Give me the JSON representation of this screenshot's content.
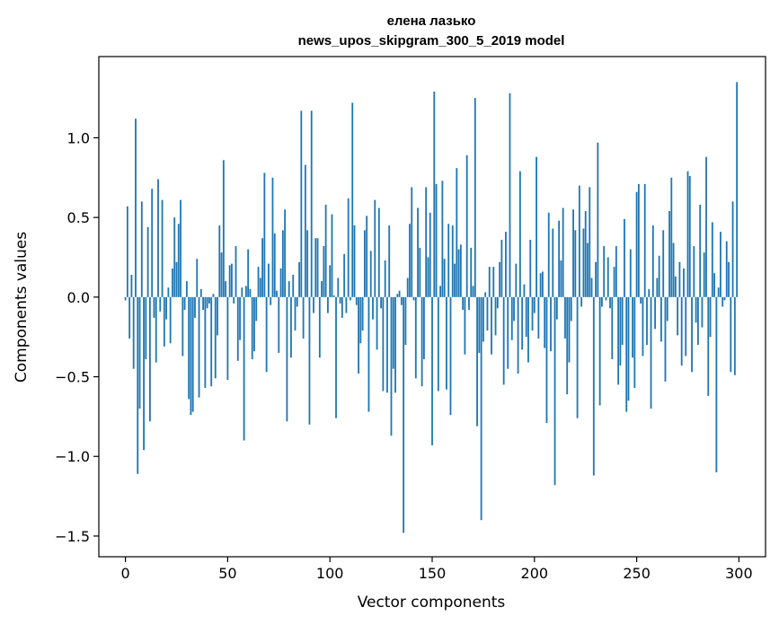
{
  "chart_data": {
    "type": "bar",
    "title": "елена лазько",
    "subtitle": "news_upos_skipgram_300_5_2019 model",
    "xlabel": "Vector components",
    "ylabel": "Components values",
    "xlim": [
      -13,
      313
    ],
    "ylim": [
      -1.63,
      1.51
    ],
    "xticks": [
      0,
      50,
      100,
      150,
      200,
      250,
      300
    ],
    "xtick_labels": [
      "0",
      "50",
      "100",
      "150",
      "200",
      "250",
      "300"
    ],
    "yticks": [
      -1.5,
      -1.0,
      -0.5,
      0.0,
      0.5,
      1.0
    ],
    "ytick_labels": [
      "−1.5",
      "−1.0",
      "−0.5",
      "0.0",
      "0.5",
      "1.0"
    ],
    "grid": false,
    "legend": "none",
    "bar_color": "#1f77b4",
    "x": "0..299",
    "values": [
      -0.02,
      0.57,
      -0.26,
      0.14,
      -0.45,
      1.12,
      -1.11,
      -0.7,
      0.6,
      -0.96,
      -0.39,
      0.44,
      -0.78,
      0.68,
      -0.13,
      -0.41,
      0.74,
      -0.09,
      0.61,
      -0.31,
      -0.14,
      0.06,
      -0.29,
      0.18,
      0.5,
      0.22,
      0.46,
      0.61,
      -0.37,
      -0.08,
      0.1,
      -0.64,
      -0.74,
      -0.72,
      -0.13,
      0.24,
      -0.63,
      0.05,
      -0.08,
      -0.57,
      -0.07,
      -0.04,
      -0.56,
      0.02,
      -0.51,
      -0.24,
      0.45,
      0.28,
      0.86,
      0.1,
      -0.52,
      0.2,
      0.21,
      -0.04,
      0.32,
      -0.4,
      -0.27,
      0.06,
      -0.9,
      0.07,
      0.3,
      0.05,
      -0.39,
      -0.34,
      -0.15,
      0.19,
      0.12,
      0.37,
      0.78,
      -0.47,
      0.21,
      -0.05,
      0.75,
      0.4,
      0.04,
      -0.35,
      0.18,
      0.42,
      0.55,
      -0.78,
      0.1,
      -0.38,
      0.14,
      -0.21,
      -0.06,
      0.22,
      1.17,
      -0.26,
      0.83,
      0.42,
      -0.8,
      1.17,
      -0.1,
      0.37,
      0.37,
      -0.38,
      0.1,
      0.32,
      0.58,
      -0.1,
      0.2,
      0.52,
      0.01,
      -0.76,
      0.12,
      -0.04,
      -0.13,
      0.27,
      -0.1,
      0.62,
      -0.02,
      1.22,
      0.45,
      -0.05,
      -0.48,
      -0.29,
      -0.21,
      0.42,
      0.51,
      -0.72,
      0.29,
      -0.14,
      0.61,
      -0.33,
      0.56,
      -0.07,
      -0.59,
      0.23,
      -0.6,
      0.45,
      -0.87,
      -0.45,
      -0.6,
      0.02,
      0.04,
      -0.05,
      -1.48,
      -0.3,
      0.12,
      0.46,
      0.69,
      -0.02,
      -0.51,
      0.56,
      0.31,
      -0.56,
      -0.39,
      0.69,
      0.25,
      0.53,
      -0.93,
      1.29,
      0.71,
      -0.59,
      0.07,
      0.73,
      0.24,
      -0.58,
      0.46,
      -0.74,
      0.45,
      0.21,
      0.81,
      0.3,
      0.33,
      -0.08,
      -0.36,
      0.89,
      -0.08,
      0.31,
      0.07,
      1.25,
      -0.81,
      -0.35,
      -1.4,
      -0.28,
      0.03,
      -0.21,
      0.19,
      -0.36,
      0.19,
      -0.24,
      -0.07,
      0.22,
      0.36,
      -0.55,
      0.41,
      -0.45,
      1.28,
      -0.27,
      -0.15,
      0.21,
      -0.48,
      0.79,
      -0.33,
      0.08,
      -0.25,
      -0.41,
      0.36,
      -0.21,
      -0.1,
      0.88,
      -0.26,
      0.15,
      0.16,
      -0.32,
      -0.79,
      0.53,
      -0.34,
      0.43,
      -1.18,
      -0.14,
      0.48,
      0.23,
      0.56,
      -0.26,
      -0.61,
      -0.41,
      -0.15,
      0.55,
      0.42,
      -0.76,
      0.7,
      -0.06,
      0.43,
      0.54,
      0.34,
      0.69,
      0.12,
      -1.12,
      0.22,
      0.97,
      -0.68,
      -0.06,
      0.32,
      -0.02,
      0.25,
      -0.07,
      -0.39,
      0.19,
      0.32,
      -0.55,
      -0.43,
      -0.3,
      0.49,
      -0.72,
      -0.65,
      0.3,
      -0.38,
      -0.57,
      0.66,
      0.71,
      -0.04,
      -0.37,
      0.71,
      -0.3,
      0.05,
      -0.7,
      0.45,
      -0.2,
      0.12,
      0.26,
      -0.28,
      0.42,
      -0.53,
      -0.15,
      0.54,
      0.75,
      0.34,
      0.13,
      -0.24,
      0.22,
      -0.43,
      0.18,
      -0.37,
      0.79,
      0.76,
      -0.47,
      0.32,
      -0.16,
      -0.3,
      0.58,
      -0.19,
      0.28,
      0.88,
      -0.62,
      -0.25,
      0.47,
      0.15,
      -1.1,
      0.06,
      0.41,
      -0.06,
      -0.02,
      0.35,
      0.22,
      -0.47,
      0.6,
      -0.49,
      1.35
    ]
  }
}
